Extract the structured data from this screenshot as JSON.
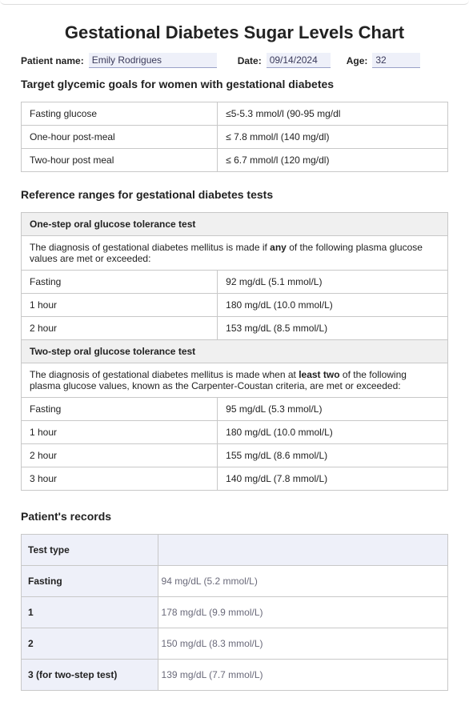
{
  "title": "Gestational Diabetes Sugar Levels Chart",
  "patient": {
    "name_label": "Patient name:",
    "name_value": "Emily Rodrigues",
    "date_label": "Date:",
    "date_value": "09/14/2024",
    "age_label": "Age:",
    "age_value": "32"
  },
  "goals": {
    "heading": "Target glycemic goals for women with gestational diabetes",
    "rows": [
      {
        "label": "Fasting glucose",
        "value": "≤5-5.3 mmol/l (90-95 mg/dl"
      },
      {
        "label": "One-hour post-meal",
        "value": "≤ 7.8 mmol/l (140 mg/dl)"
      },
      {
        "label": "Two-hour post meal",
        "value": "≤ 6.7 mmol/l (120 mg/dl)"
      }
    ]
  },
  "reference": {
    "heading": "Reference ranges for gestational diabetes tests",
    "one_step": {
      "title": "One-step oral glucose tolerance test",
      "desc_pre": "The diagnosis of gestational diabetes mellitus is made if ",
      "desc_bold": "any",
      "desc_post": " of the following plasma glucose values are met or exceeded:",
      "rows": [
        {
          "label": "Fasting",
          "value": "92 mg/dL (5.1 mmol/L)"
        },
        {
          "label": "1 hour",
          "value": "180 mg/dL (10.0 mmol/L)"
        },
        {
          "label": "2 hour",
          "value": "153 mg/dL (8.5 mmol/L)"
        }
      ]
    },
    "two_step": {
      "title": "Two-step oral glucose tolerance test",
      "desc_pre": "The diagnosis of gestational diabetes mellitus is made when at ",
      "desc_bold": "least two",
      "desc_post": " of the following plasma glucose values, known as the Carpenter-Coustan criteria, are met or exceeded:",
      "rows": [
        {
          "label": "Fasting",
          "value": "95 mg/dL (5.3 mmol/L)"
        },
        {
          "label": "1 hour",
          "value": "180 mg/dL (10.0 mmol/L)"
        },
        {
          "label": "2 hour",
          "value": "155 mg/dL (8.6 mmol/L)"
        },
        {
          "label": "3 hour",
          "value": "140 mg/dL (7.8 mmol/L)"
        }
      ]
    }
  },
  "records": {
    "heading": "Patient's records",
    "header": "Test type",
    "rows": [
      {
        "label": "Fasting",
        "value": "94 mg/dL (5.2 mmol/L)"
      },
      {
        "label": "1",
        "value": "178 mg/dL (9.9 mmol/L)"
      },
      {
        "label": "2",
        "value": "150 mg/dL (8.3 mmol/L)"
      },
      {
        "label": "3 (for two-step test)",
        "value": "139 mg/dL (7.7 mmol/L)"
      }
    ]
  },
  "colors": {
    "page_bg": "#ffffff",
    "border": "#c8c8c8",
    "header_bg": "#f0f0f0",
    "field_bg": "#eef0f9",
    "field_underline": "#9aa0c7",
    "text": "#222222",
    "muted_text": "#6a6a7a"
  },
  "typography": {
    "title_fontsize": 22,
    "section_fontsize": 14,
    "body_fontsize": 12,
    "font_family": "Arial"
  }
}
